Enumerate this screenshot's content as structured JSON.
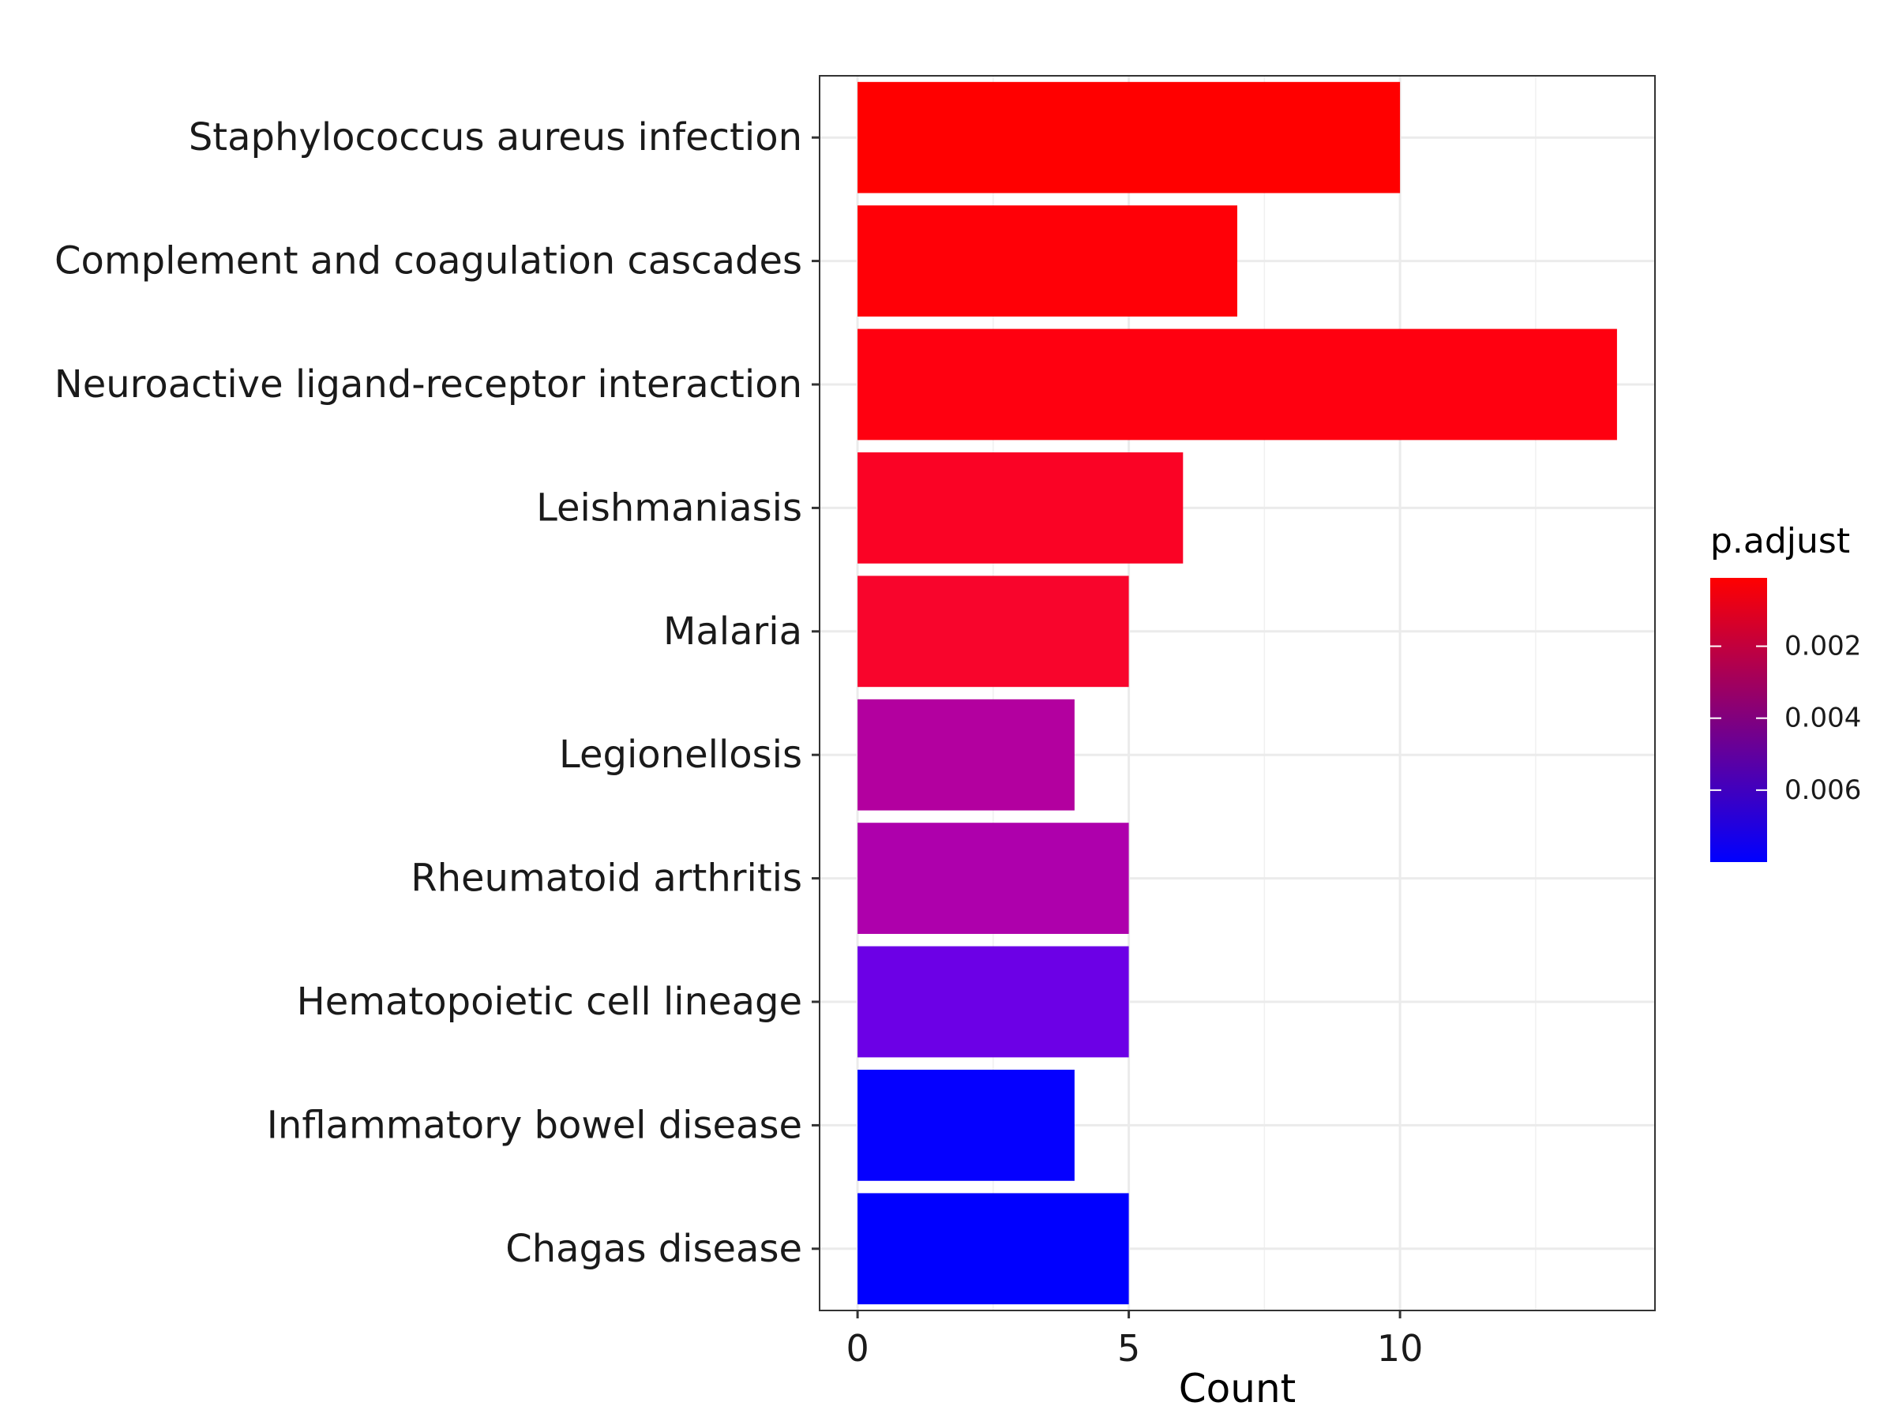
{
  "chart_data": {
    "type": "bar",
    "orientation": "horizontal",
    "categories": [
      "Staphylococcus aureus infection",
      "Complement and coagulation cascades",
      "Neuroactive ligand-receptor interaction",
      "Leishmaniasis",
      "Malaria",
      "Legionellosis",
      "Rheumatoid arthritis",
      "Hematopoietic cell lineage",
      "Inflammatory bowel disease",
      "Chagas disease"
    ],
    "values": [
      10,
      7,
      14,
      6,
      5,
      4,
      5,
      5,
      4,
      5
    ],
    "p_adjust": [
      0.0001,
      0.0001,
      0.0002,
      0.0005,
      0.0006,
      0.0048,
      0.005,
      0.0068,
      0.0079,
      0.008
    ],
    "bar_colors": [
      "#ff0000",
      "#ff0007",
      "#ff0010",
      "#fa0325",
      "#f8052c",
      "#b3009f",
      "#ae00ac",
      "#6c00e6",
      "#0500ff",
      "#0000ff"
    ],
    "title": "",
    "xlabel": "Count",
    "ylabel": "",
    "xlim": [
      -0.7,
      14.7
    ],
    "xticks": [
      0,
      5,
      10
    ],
    "x_minor_gridlines": [
      2.5,
      7.5,
      12.5
    ],
    "grid": true,
    "legend": {
      "title": "p.adjust",
      "position": "right",
      "range": [
        0.0001,
        0.008
      ],
      "ticks": [
        0.002,
        0.004,
        0.006
      ],
      "tick_labels": [
        "0.002",
        "0.004",
        "0.006"
      ],
      "low_color": "#ff0000",
      "high_color": "#0000ff"
    }
  }
}
